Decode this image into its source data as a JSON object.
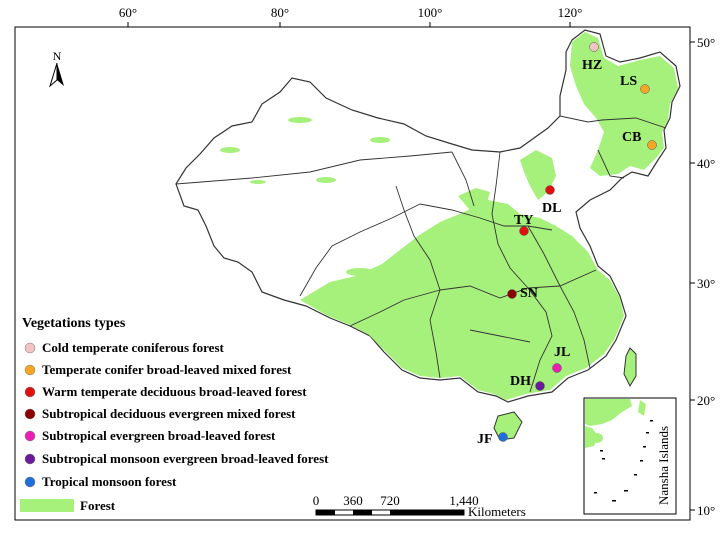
{
  "axes": {
    "top_ticks": [
      "60°",
      "80°",
      "100°",
      "120°"
    ],
    "right_ticks": [
      "50°",
      "40°",
      "30°",
      "20°",
      "10°"
    ]
  },
  "north_arrow": {
    "label": "N",
    "icon": "north-arrow-icon"
  },
  "sites": [
    {
      "code": "HZ",
      "color": "#f4c3c3"
    },
    {
      "code": "LS",
      "color": "#f5a623"
    },
    {
      "code": "CB",
      "color": "#f5a623"
    },
    {
      "code": "DL",
      "color": "#e01010"
    },
    {
      "code": "TY",
      "color": "#e01010"
    },
    {
      "code": "SN",
      "color": "#8b0000"
    },
    {
      "code": "JL",
      "color": "#ec1fb3"
    },
    {
      "code": "DH",
      "color": "#6a1b9a"
    },
    {
      "code": "JF",
      "color": "#1e6fd9"
    }
  ],
  "legend": {
    "title": "Vegetations types",
    "items": [
      {
        "label": "Cold temperate coniferous forest",
        "color": "#f4c3c3"
      },
      {
        "label": "Temperate conifer broad-leaved mixed forest",
        "color": "#f5a623"
      },
      {
        "label": "Warm temperate deciduous broad-leaved forest",
        "color": "#e01010"
      },
      {
        "label": "Subtropical deciduous evergreen mixed forest",
        "color": "#8b0000"
      },
      {
        "label": "Subtropical evergreen broad-leaved forest",
        "color": "#ec1fb3"
      },
      {
        "label": "Subtropical monsoon evergreen broad-leaved forest",
        "color": "#6a1b9a"
      },
      {
        "label": "Tropical monsoon forest",
        "color": "#1e6fd9"
      }
    ],
    "forest_label": "Forest",
    "forest_color": "#a6f07c"
  },
  "scale_bar": {
    "ticks": [
      "0",
      "360",
      "720",
      "1,440"
    ],
    "unit": "Kilometers"
  },
  "inset": {
    "label": "Nansha Islands"
  }
}
